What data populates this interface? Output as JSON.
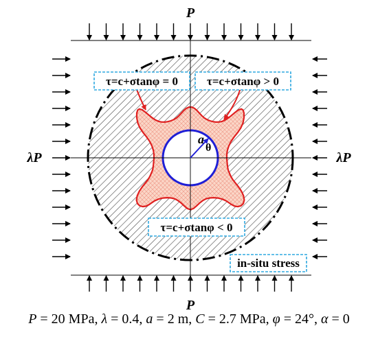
{
  "labels": {
    "top_load": "P",
    "bottom_load": "P",
    "left_load": "λP",
    "right_load": "λP",
    "radius": "a",
    "angle": "θ"
  },
  "regions": {
    "failure_boundary": "τ=c+σtanφ = 0",
    "failure_zone": "τ=c+σtanφ > 0",
    "elastic_zone": "τ=c+σtanφ < 0",
    "outer_field": "in-situ stress"
  },
  "caption": {
    "p_sym": "P",
    "p_val": " = 20 MPa, ",
    "lambda_sym": "λ",
    "lambda_val": " = 0.4, ",
    "a_sym": "a",
    "a_val": " = 2 m, ",
    "c_sym": "C",
    "c_val": " = 2.7 MPa, ",
    "phi_sym": "φ",
    "phi_val": " = 24°, ",
    "alpha_sym": "α",
    "alpha_val": " = 0"
  },
  "colors": {
    "tunnel_circle": "#1f1fd6",
    "failure_zone_outline": "#e02020",
    "failure_zone_fill": "#fbd7c8",
    "label_box_border": "#2fa8e0",
    "hatch": "#444444"
  },
  "icons": {
    "load_arrow": "arrow-icon"
  }
}
